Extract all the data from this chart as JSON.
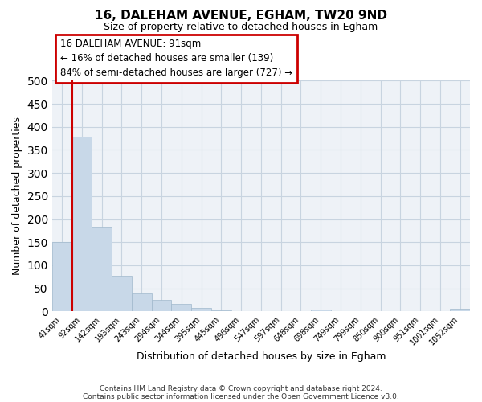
{
  "title": "16, DALEHAM AVENUE, EGHAM, TW20 9ND",
  "subtitle": "Size of property relative to detached houses in Egham",
  "xlabel": "Distribution of detached houses by size in Egham",
  "ylabel": "Number of detached properties",
  "bar_color": "#c8d8e8",
  "bar_edge_color": "#a0b8cc",
  "grid_color": "#c8d4e0",
  "background_color": "#eef2f7",
  "bin_labels": [
    "41sqm",
    "92sqm",
    "142sqm",
    "193sqm",
    "243sqm",
    "294sqm",
    "344sqm",
    "395sqm",
    "445sqm",
    "496sqm",
    "547sqm",
    "597sqm",
    "648sqm",
    "698sqm",
    "749sqm",
    "799sqm",
    "850sqm",
    "900sqm",
    "951sqm",
    "1001sqm",
    "1052sqm"
  ],
  "bar_values": [
    150,
    378,
    183,
    78,
    39,
    25,
    16,
    7,
    2,
    0,
    0,
    0,
    0,
    4,
    0,
    0,
    0,
    0,
    0,
    0,
    5
  ],
  "ylim": [
    0,
    500
  ],
  "yticks": [
    0,
    50,
    100,
    150,
    200,
    250,
    300,
    350,
    400,
    450,
    500
  ],
  "vline_x": 0.5,
  "vline_color": "#cc0000",
  "annotation_title": "16 DALEHAM AVENUE: 91sqm",
  "annotation_line1": "← 16% of detached houses are smaller (139)",
  "annotation_line2": "84% of semi-detached houses are larger (727) →",
  "annotation_box_color": "#cc0000",
  "footer_line1": "Contains HM Land Registry data © Crown copyright and database right 2024.",
  "footer_line2": "Contains public sector information licensed under the Open Government Licence v3.0."
}
